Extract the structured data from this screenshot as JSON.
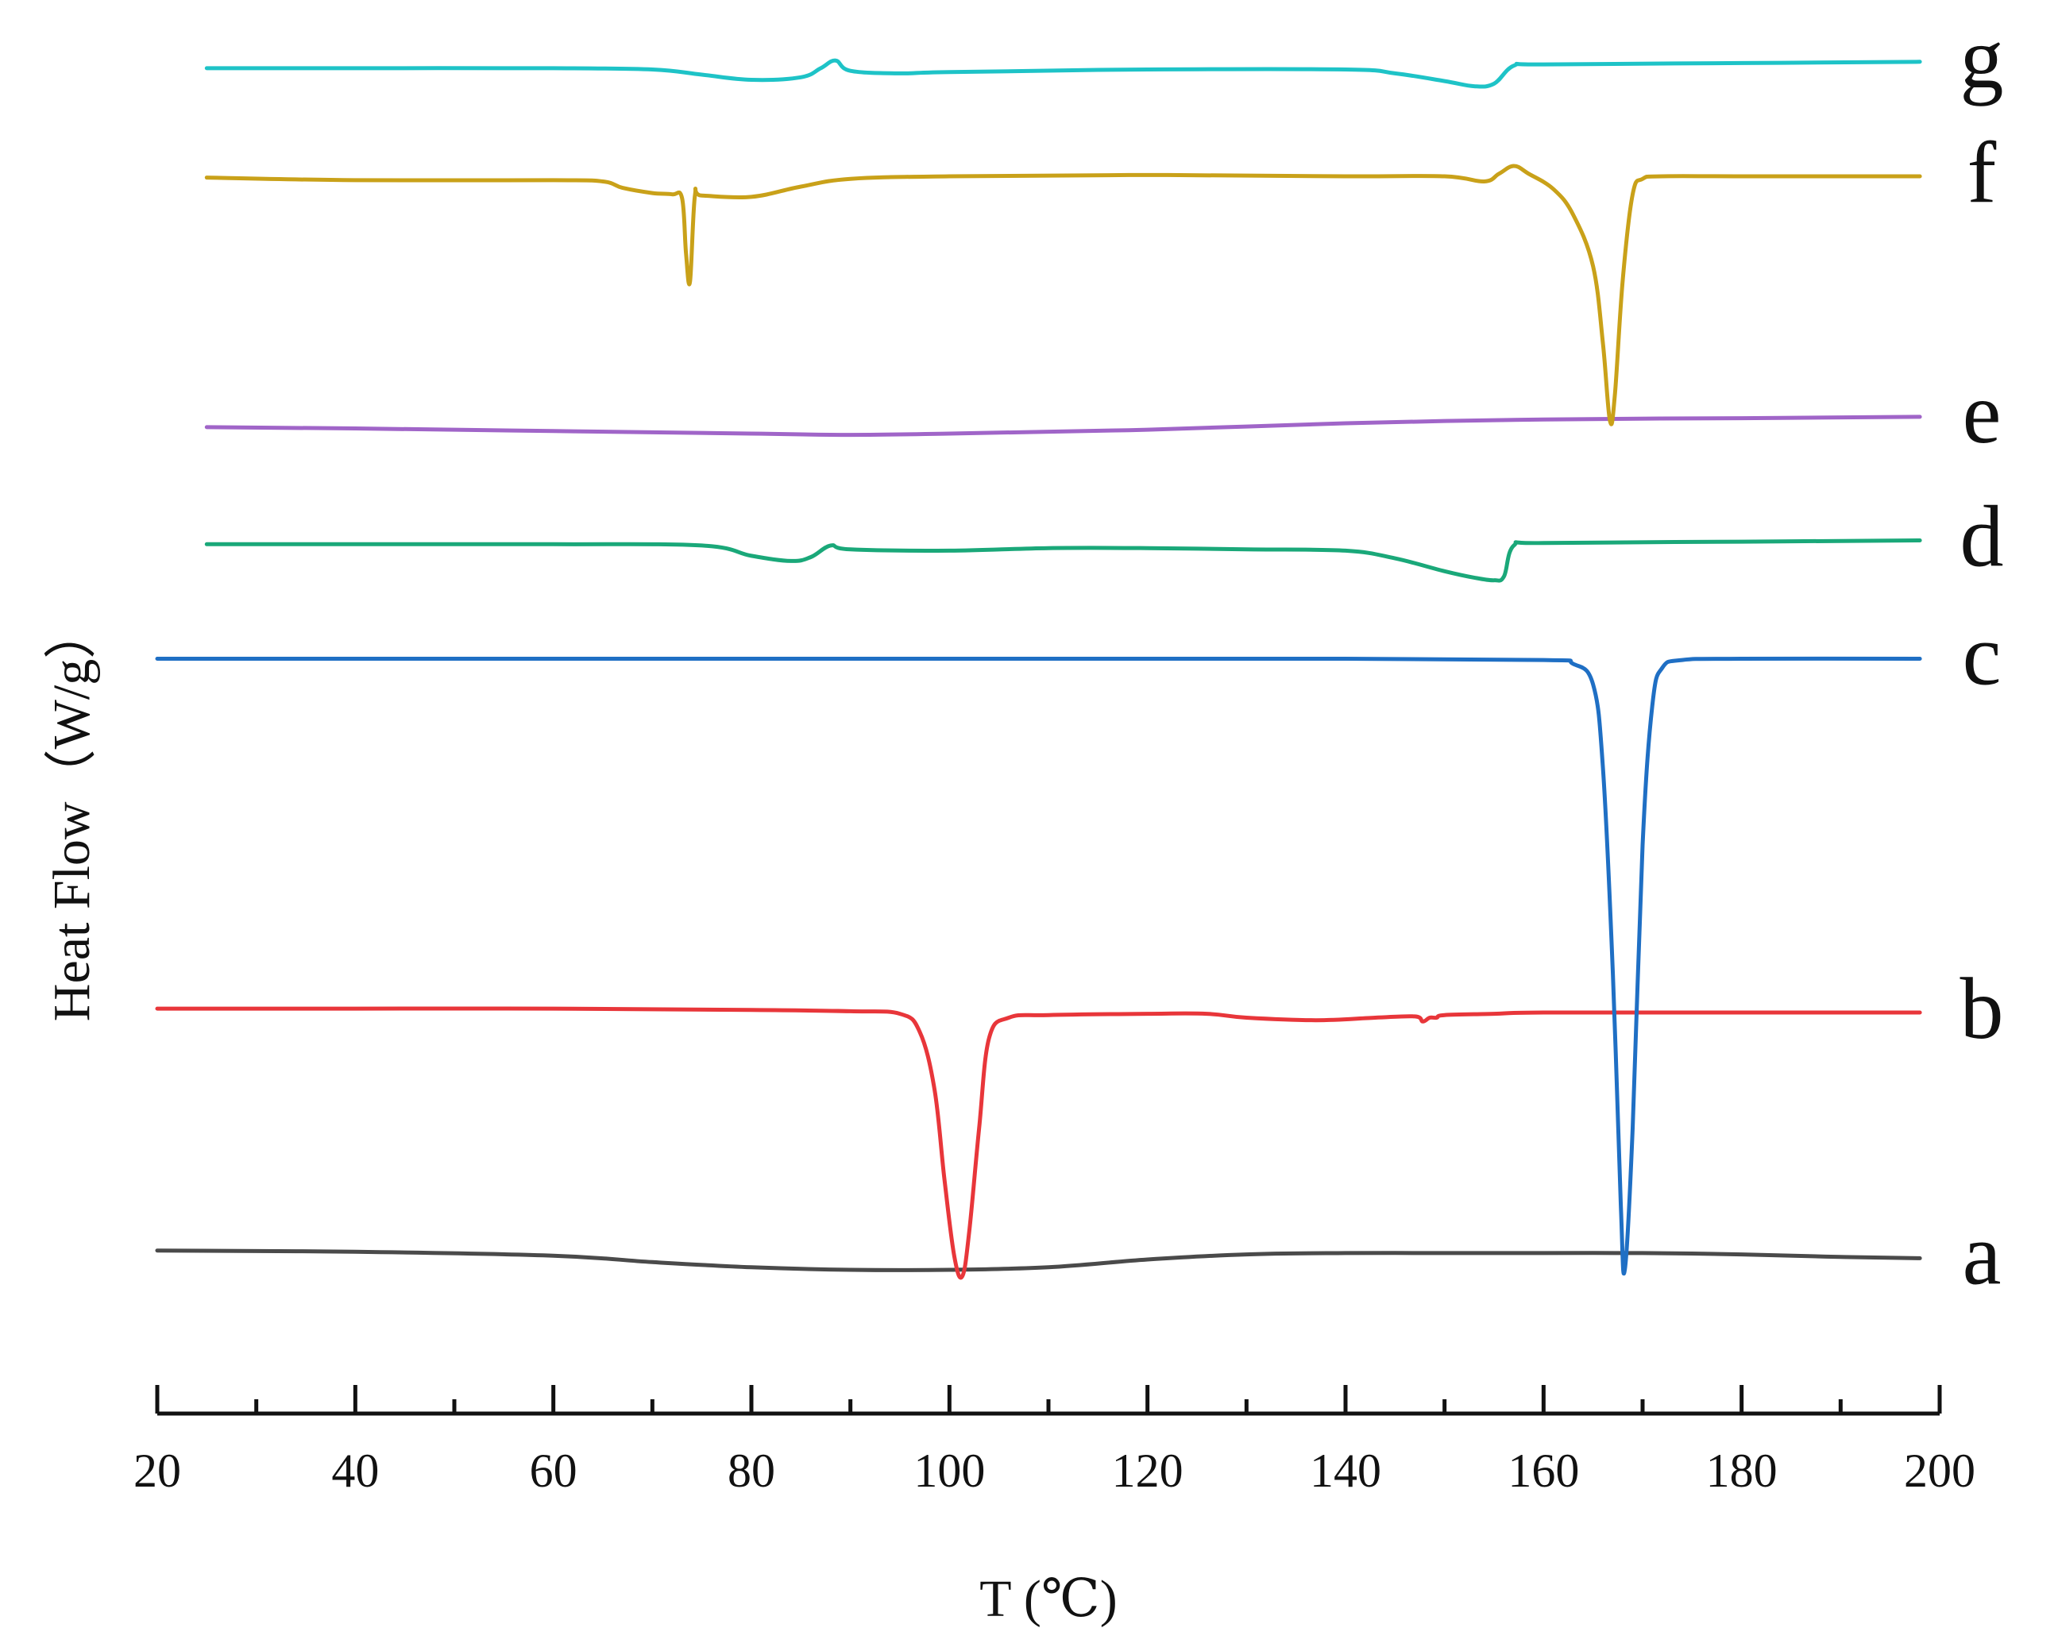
{
  "chart_data": {
    "type": "line",
    "title": "",
    "xlabel": "T (℃)",
    "ylabel": "Heat Flow（W/g）",
    "xlim": [
      20,
      200
    ],
    "xticks": [
      20,
      40,
      60,
      80,
      100,
      120,
      140,
      160,
      180,
      200
    ],
    "ylim": [
      0,
      100
    ],
    "y_units": "arbitrary stacked offsets (no numeric y-axis shown)",
    "series": [
      {
        "name": "a",
        "color": "#4a4a4a",
        "x": [
          20,
          40,
          60,
          70,
          80,
          90,
          100,
          110,
          120,
          130,
          140,
          150,
          160,
          170,
          180,
          190,
          198
        ],
        "values": [
          6.5,
          6.4,
          6.1,
          5.6,
          5.2,
          5.0,
          5.0,
          5.2,
          5.8,
          6.2,
          6.3,
          6.3,
          6.3,
          6.3,
          6.2,
          6.0,
          5.9
        ]
      },
      {
        "name": "b",
        "color": "#e8363a",
        "x": [
          20,
          40,
          60,
          80,
          90,
          95,
          97,
          98.5,
          99.5,
          100.5,
          101.3,
          102,
          103,
          104,
          106,
          110,
          120,
          126,
          130,
          137,
          143,
          147,
          147.8,
          148.5,
          149.2,
          150,
          155,
          160,
          180,
          198
        ],
        "values": [
          25.3,
          25.3,
          25.3,
          25.2,
          25.1,
          24.9,
          23.5,
          19,
          12,
          6,
          4.5,
          8,
          16,
          23,
          24.6,
          24.8,
          24.9,
          24.9,
          24.6,
          24.4,
          24.6,
          24.7,
          24.3,
          24.6,
          24.6,
          24.8,
          24.9,
          25.0,
          25.0,
          25.0
        ]
      },
      {
        "name": "c",
        "color": "#1f6fc4",
        "x": [
          20,
          60,
          100,
          140,
          160,
          163,
          165,
          166,
          167,
          167.8,
          168.2,
          169,
          170,
          171,
          172,
          174,
          180,
          198
        ],
        "values": [
          52.5,
          52.5,
          52.5,
          52.5,
          52.4,
          52.1,
          50.5,
          44,
          28,
          10,
          5,
          16,
          38,
          49,
          51.8,
          52.4,
          52.5,
          52.5
        ]
      },
      {
        "name": "d",
        "color": "#1aa879",
        "x": [
          25,
          40,
          60,
          75,
          80,
          84,
          86,
          88,
          90,
          100,
          110,
          120,
          130,
          140,
          145,
          150,
          153,
          155,
          156,
          157,
          160,
          180,
          198
        ],
        "values": [
          61.4,
          61.4,
          61.4,
          61.3,
          60.5,
          60.1,
          60.4,
          61.3,
          61.0,
          60.9,
          61.1,
          61.1,
          61.0,
          60.9,
          60.3,
          59.3,
          58.8,
          58.6,
          58.9,
          61.3,
          61.5,
          61.6,
          61.7
        ]
      },
      {
        "name": "e",
        "color": "#a065c8",
        "x": [
          25,
          40,
          60,
          80,
          90,
          100,
          120,
          140,
          160,
          180,
          198
        ],
        "values": [
          70.5,
          70.4,
          70.2,
          70.0,
          69.9,
          70.0,
          70.3,
          70.8,
          71.1,
          71.2,
          71.3
        ]
      },
      {
        "name": "f",
        "color": "#c9a119",
        "x": [
          25,
          40,
          60,
          65,
          67,
          70,
          72,
          73,
          73.4,
          73.8,
          74.3,
          75,
          80,
          85,
          90,
          100,
          120,
          140,
          150,
          154,
          155.5,
          157,
          158.5,
          161,
          163,
          165,
          166,
          166.7,
          167.2,
          168,
          169,
          170,
          172,
          180,
          198
        ],
        "values": [
          89.9,
          89.7,
          89.7,
          89.6,
          89.1,
          88.7,
          88.6,
          88.3,
          84,
          81.8,
          88.5,
          88.5,
          88.4,
          89.2,
          89.8,
          90.0,
          90.1,
          90.0,
          90.0,
          89.6,
          90.2,
          90.8,
          90.2,
          89.0,
          87.0,
          83.0,
          77.0,
          71,
          73,
          82,
          88.6,
          89.8,
          90.0,
          90.0,
          90.0
        ]
      },
      {
        "name": "g",
        "color": "#1ec3c7",
        "x": [
          25,
          40,
          60,
          70,
          75,
          80,
          85,
          87,
          88.5,
          90,
          95,
          100,
          120,
          140,
          145,
          150,
          153,
          155,
          157,
          160,
          180,
          198
        ],
        "values": [
          98.4,
          98.4,
          98.4,
          98.3,
          97.9,
          97.5,
          97.7,
          98.4,
          99.0,
          98.2,
          98.0,
          98.1,
          98.3,
          98.3,
          98.0,
          97.4,
          97.0,
          97.2,
          98.6,
          98.7,
          98.8,
          98.9
        ]
      }
    ]
  }
}
